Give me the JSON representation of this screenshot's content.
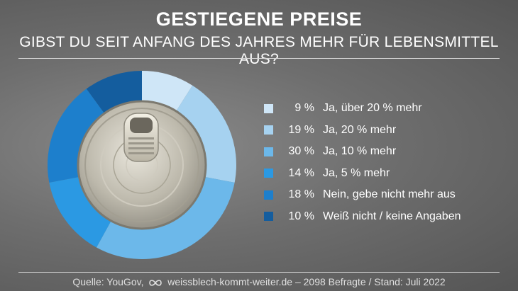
{
  "title": "GESTIEGENE PREISE",
  "subtitle": "GIBST DU SEIT ANFANG DES JAHRES MEHR FÜR LEBENSMITTEL AUS?",
  "footer": {
    "source": "Quelle: YouGov,",
    "site_and_meta": "weissblech-kommt-weiter.de – 2098 Befragte / Stand: Juli 2022"
  },
  "chart_data": {
    "type": "pie",
    "title": "GIBST DU SEIT ANFANG DES JAHRES MEHR FÜR LEBENSMITTEL AUS?",
    "legend_position": "right",
    "slices": [
      {
        "label": "Ja, über 20 % mehr",
        "value": 9,
        "value_label": "9 %",
        "color": "#cfe6f7"
      },
      {
        "label": "Ja, 20 % mehr",
        "value": 19,
        "value_label": "19 %",
        "color": "#a6d2f0"
      },
      {
        "label": "Ja, 10 % mehr",
        "value": 30,
        "value_label": "30 %",
        "color": "#6cb8ea"
      },
      {
        "label": "Ja, 5 % mehr",
        "value": 14,
        "value_label": "14 %",
        "color": "#2b99e3"
      },
      {
        "label": "Nein, gebe nicht mehr aus",
        "value": 18,
        "value_label": "18 %",
        "color": "#1d7fcc"
      },
      {
        "label": "Weiß nicht / keine Angaben",
        "value": 10,
        "value_label": "10 %",
        "color": "#145d9e"
      }
    ]
  }
}
